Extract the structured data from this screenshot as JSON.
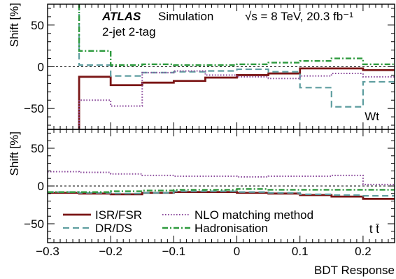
{
  "chart_data": [
    {
      "type": "line",
      "panel": "top",
      "ylabel": "Shift [%]",
      "ylim": [
        -75,
        75
      ],
      "yticks": [
        -50,
        0,
        50
      ],
      "ytick_labels": [
        "−50",
        "0",
        "50"
      ],
      "xlim": [
        -0.3,
        0.25
      ],
      "grid": false,
      "annotations": {
        "atlas": "ATLAS",
        "simulation": "Simulation",
        "energy": "√s = 8 TeV, 20.3 fb⁻¹",
        "selection": "2-jet 2-tag",
        "process": "Wt"
      },
      "bin_edges": [
        -0.25,
        -0.2,
        -0.15,
        -0.1,
        -0.05,
        0.0,
        0.05,
        0.1,
        0.15,
        0.2,
        0.25
      ],
      "series": [
        {
          "key": "isr",
          "name": "ISR/FSR",
          "color": "#7a1515",
          "style": "solid",
          "first": -75,
          "values": [
            -12,
            -22,
            -19,
            -17,
            -13,
            -10,
            -8,
            -2,
            -2,
            -4
          ]
        },
        {
          "key": "drds",
          "name": "DR/DS",
          "color": "#5f9ea0",
          "style": "dashed",
          "first": 75,
          "values": [
            2,
            -11,
            -7,
            -6,
            -5,
            -3,
            -6,
            -25,
            -48,
            -18
          ]
        },
        {
          "key": "nlo",
          "name": "NLO matching method",
          "color": "#8b4a9c",
          "style": "dotted",
          "first": -75,
          "values": [
            -40,
            -47,
            -7,
            -5,
            -10,
            -12,
            -14,
            -11,
            -8,
            -12
          ]
        },
        {
          "key": "had",
          "name": "Hadronisation",
          "color": "#2e9a3e",
          "style": "dashdot",
          "first": 75,
          "values": [
            19,
            2,
            3,
            2,
            2,
            3,
            5,
            7,
            10,
            3
          ]
        }
      ]
    },
    {
      "type": "line",
      "panel": "bottom",
      "ylabel": "Shift [%]",
      "xlabel": "BDT Response",
      "ylim": [
        -75,
        75
      ],
      "yticks": [
        -50,
        0,
        50
      ],
      "ytick_labels": [
        "−50",
        "0",
        "50"
      ],
      "xlim": [
        -0.3,
        0.25
      ],
      "xticks": [
        -0.3,
        -0.2,
        -0.1,
        0,
        0.1,
        0.2
      ],
      "xtick_labels": [
        "−0.3",
        "−0.2",
        "−0.1",
        "0",
        "0.1",
        "0.2"
      ],
      "grid": false,
      "annotations": {
        "process": "t t̄"
      },
      "legend": "bottom",
      "bin_edges": [
        -0.3,
        -0.25,
        -0.2,
        -0.15,
        -0.1,
        -0.05,
        0.0,
        0.05,
        0.1,
        0.15,
        0.2,
        0.25
      ],
      "series": [
        {
          "key": "isr",
          "name": "ISR/FSR",
          "color": "#7a1515",
          "style": "solid",
          "values": [
            -9,
            -10,
            -11,
            -9,
            -8,
            -8,
            -9,
            -10,
            -12,
            -14,
            -17
          ]
        },
        {
          "key": "drds",
          "name": "DR/DS",
          "color": "#5f9ea0",
          "style": "dashed",
          "values": [
            -8,
            -9,
            -10,
            -9,
            -7,
            -7,
            -8,
            -9,
            -11,
            -12,
            -13
          ]
        },
        {
          "key": "nlo",
          "name": "NLO matching method",
          "color": "#8b4a9c",
          "style": "dotted",
          "values": [
            19,
            18,
            16,
            14,
            13,
            13,
            12,
            13,
            13,
            14,
            2
          ]
        },
        {
          "key": "had",
          "name": "Hadronisation",
          "color": "#2e9a3e",
          "style": "dashdot",
          "values": [
            -8,
            -8,
            -7,
            -6,
            -5,
            -5,
            -4,
            -5,
            -5,
            -5,
            -5
          ]
        }
      ]
    }
  ]
}
